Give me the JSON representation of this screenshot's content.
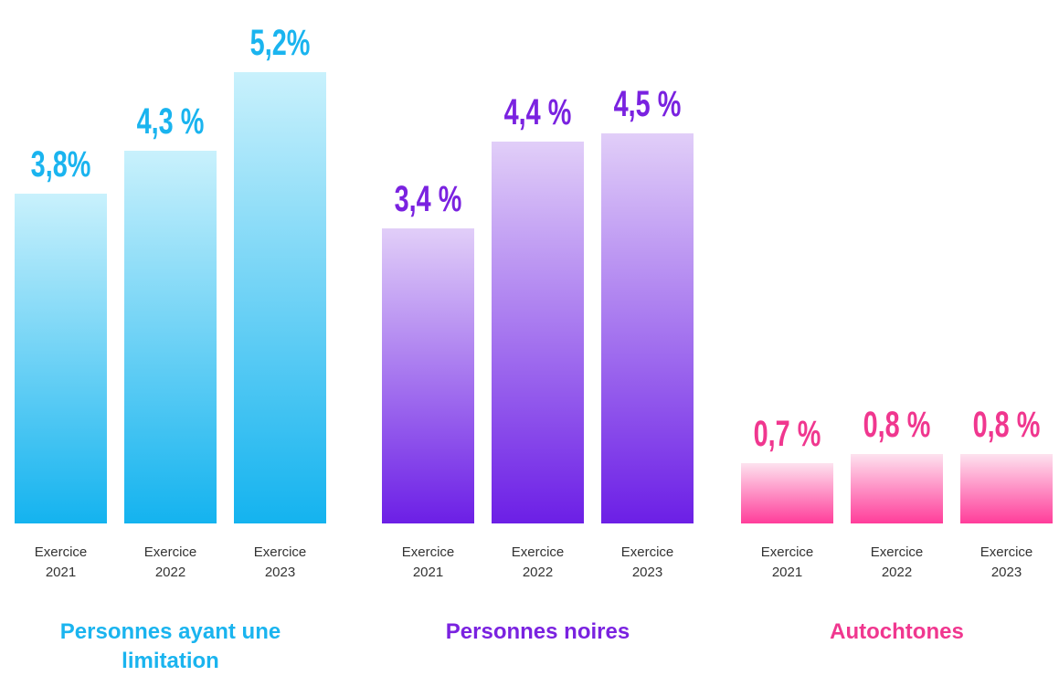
{
  "chart_data": [
    {
      "type": "bar",
      "title": "Personnes ayant une limitation",
      "categories": [
        "Exercice 2021",
        "Exercice 2022",
        "Exercice 2023"
      ],
      "values": [
        3.8,
        4.3,
        5.2
      ],
      "value_labels": [
        "3,8%",
        "4,3 %",
        "5,2%"
      ],
      "color": "#1ab4ef",
      "gradient": [
        "#c9f1fc",
        "#14b3ef"
      ]
    },
    {
      "type": "bar",
      "title": "Personnes noires",
      "categories": [
        "Exercice 2021",
        "Exercice 2022",
        "Exercice 2023"
      ],
      "values": [
        3.4,
        4.4,
        4.5
      ],
      "value_labels": [
        "3,4 %",
        "4,4 %",
        "4,5 %"
      ],
      "color": "#7a22e0",
      "gradient": [
        "#e1cef8",
        "#6c1fe6"
      ]
    },
    {
      "type": "bar",
      "title": "Autochtones",
      "categories": [
        "Exercice 2021",
        "Exercice 2022",
        "Exercice 2023"
      ],
      "values": [
        0.7,
        0.8,
        0.8
      ],
      "value_labels": [
        "0,7 %",
        "0,8 %",
        "0,8 %"
      ],
      "color": "#f0378f",
      "gradient": [
        "#fde2ef",
        "#ff3d9a"
      ]
    }
  ]
}
